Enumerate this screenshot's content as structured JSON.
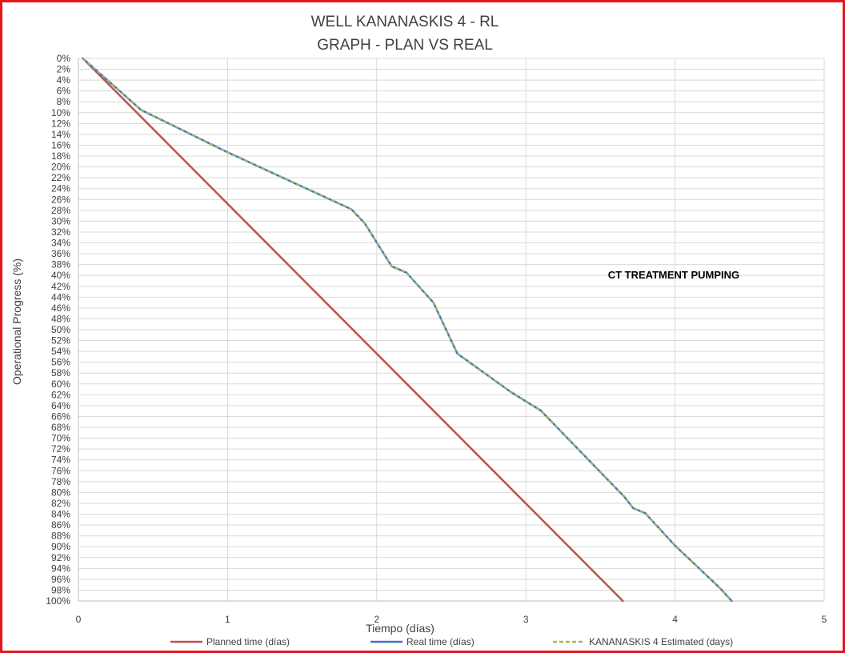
{
  "chart_data": {
    "type": "line",
    "title_lines": [
      "WELL KANANASKIS 4 - RL",
      "GRAPH  - PLAN VS REAL"
    ],
    "xlabel": "Tiempo (días)",
    "ylabel": "Operational Progress (%)",
    "xlim": [
      0,
      5
    ],
    "ylim": [
      0,
      100
    ],
    "y_inverted": true,
    "x_ticks": [
      "0",
      "1",
      "2",
      "3",
      "4",
      "5"
    ],
    "y_ticks": [
      "0%",
      "2%",
      "4%",
      "6%",
      "8%",
      "10%",
      "12%",
      "14%",
      "16%",
      "18%",
      "20%",
      "22%",
      "24%",
      "26%",
      "28%",
      "30%",
      "32%",
      "34%",
      "36%",
      "38%",
      "40%",
      "42%",
      "44%",
      "46%",
      "48%",
      "50%",
      "52%",
      "54%",
      "56%",
      "58%",
      "60%",
      "62%",
      "64%",
      "66%",
      "68%",
      "70%",
      "72%",
      "74%",
      "76%",
      "78%",
      "80%",
      "82%",
      "84%",
      "86%",
      "88%",
      "90%",
      "92%",
      "94%",
      "96%",
      "98%",
      "100%"
    ],
    "grid": true,
    "legend_position": "bottom",
    "annotations": [
      {
        "text": "CT TREATMENT PUMPING",
        "x": 3.55,
        "y": 40
      }
    ],
    "series": [
      {
        "name": "Planned time (días)",
        "color": "#c0504d",
        "dash": "solid",
        "x": [
          0.03,
          3.65
        ],
        "y": [
          0,
          100
        ]
      },
      {
        "name": "Real time (días)",
        "color": "#4472c4",
        "dash": "solid",
        "x": [
          0.03,
          0.42,
          1.0,
          1.83,
          1.92,
          2.1,
          2.2,
          2.38,
          2.54,
          2.9,
          3.1,
          3.66,
          3.72,
          3.8,
          4.0,
          4.3,
          4.38
        ],
        "y": [
          0,
          9.5,
          17.3,
          27.8,
          30.4,
          38.3,
          39.5,
          45,
          54.4,
          61.5,
          64.9,
          80.8,
          82.9,
          83.8,
          89.8,
          97.6,
          100
        ]
      },
      {
        "name": "KANANASKIS 4 Estimated (days)",
        "color": "#9bbb59",
        "dash": "dashed",
        "x": [
          0.03,
          0.42,
          1.0,
          1.83,
          1.92,
          2.1,
          2.2,
          2.38,
          2.54,
          2.9,
          3.1,
          3.66,
          3.72,
          3.8,
          4.0,
          4.3,
          4.38
        ],
        "y": [
          0,
          9.5,
          17.3,
          27.8,
          30.4,
          38.3,
          39.5,
          45,
          54.4,
          61.5,
          64.9,
          80.8,
          82.9,
          83.8,
          89.8,
          97.6,
          100
        ]
      }
    ]
  }
}
